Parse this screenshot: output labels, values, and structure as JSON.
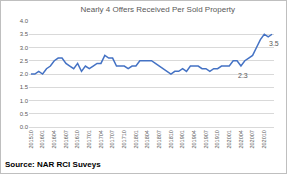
{
  "chart_data": {
    "type": "line",
    "title": "Nearly 4 Offers Received Per Sold Property",
    "categories": [
      "201510",
      null,
      null,
      "201601",
      null,
      null,
      "201604",
      null,
      null,
      "201607",
      null,
      null,
      "201610",
      null,
      null,
      "201701",
      null,
      null,
      "201704",
      null,
      null,
      "201707",
      null,
      null,
      "201710",
      null,
      null,
      "201801",
      null,
      null,
      "201804",
      null,
      null,
      "201807",
      null,
      null,
      "201810",
      null,
      null,
      "201901",
      null,
      null,
      "201904",
      null,
      null,
      "201907",
      null,
      null,
      "201910",
      null,
      null,
      "202001",
      null,
      null,
      "202004",
      null,
      null,
      "202007",
      null,
      null,
      "202010",
      null,
      null
    ],
    "values": [
      2.0,
      2.0,
      2.1,
      2.0,
      2.2,
      2.3,
      2.5,
      2.6,
      2.6,
      2.4,
      2.3,
      2.2,
      2.4,
      2.1,
      2.3,
      2.2,
      2.3,
      2.4,
      2.4,
      2.7,
      2.6,
      2.6,
      2.3,
      2.3,
      2.3,
      2.2,
      2.3,
      2.3,
      2.5,
      2.5,
      2.5,
      2.5,
      2.4,
      2.3,
      2.2,
      2.1,
      2.0,
      2.1,
      2.1,
      2.2,
      2.1,
      2.3,
      2.3,
      2.3,
      2.2,
      2.2,
      2.1,
      2.2,
      2.2,
      2.3,
      2.3,
      2.3,
      2.5,
      2.5,
      2.3,
      2.5,
      2.6,
      2.7,
      3.0,
      3.3,
      3.5,
      3.4,
      3.5
    ],
    "color": "#4472c4",
    "ylim": [
      0,
      4
    ],
    "yticks": [
      {
        "value": 0,
        "label": "0.0"
      },
      {
        "value": 0.5,
        "label": "0.5"
      },
      {
        "value": 1,
        "label": "1.0"
      },
      {
        "value": 1.5,
        "label": "1.5"
      },
      {
        "value": 2,
        "label": "2.0"
      },
      {
        "value": 2.5,
        "label": "2.5"
      },
      {
        "value": 3,
        "label": "3.0"
      },
      {
        "value": 3.5,
        "label": "3.5"
      },
      {
        "value": 4,
        "label": "4.0"
      }
    ],
    "grid": true,
    "annotations": [
      {
        "text": "2.3",
        "point": 54
      },
      {
        "text": "3.5",
        "point": 62
      }
    ],
    "source": "Source: NAR RCI Suveys"
  }
}
